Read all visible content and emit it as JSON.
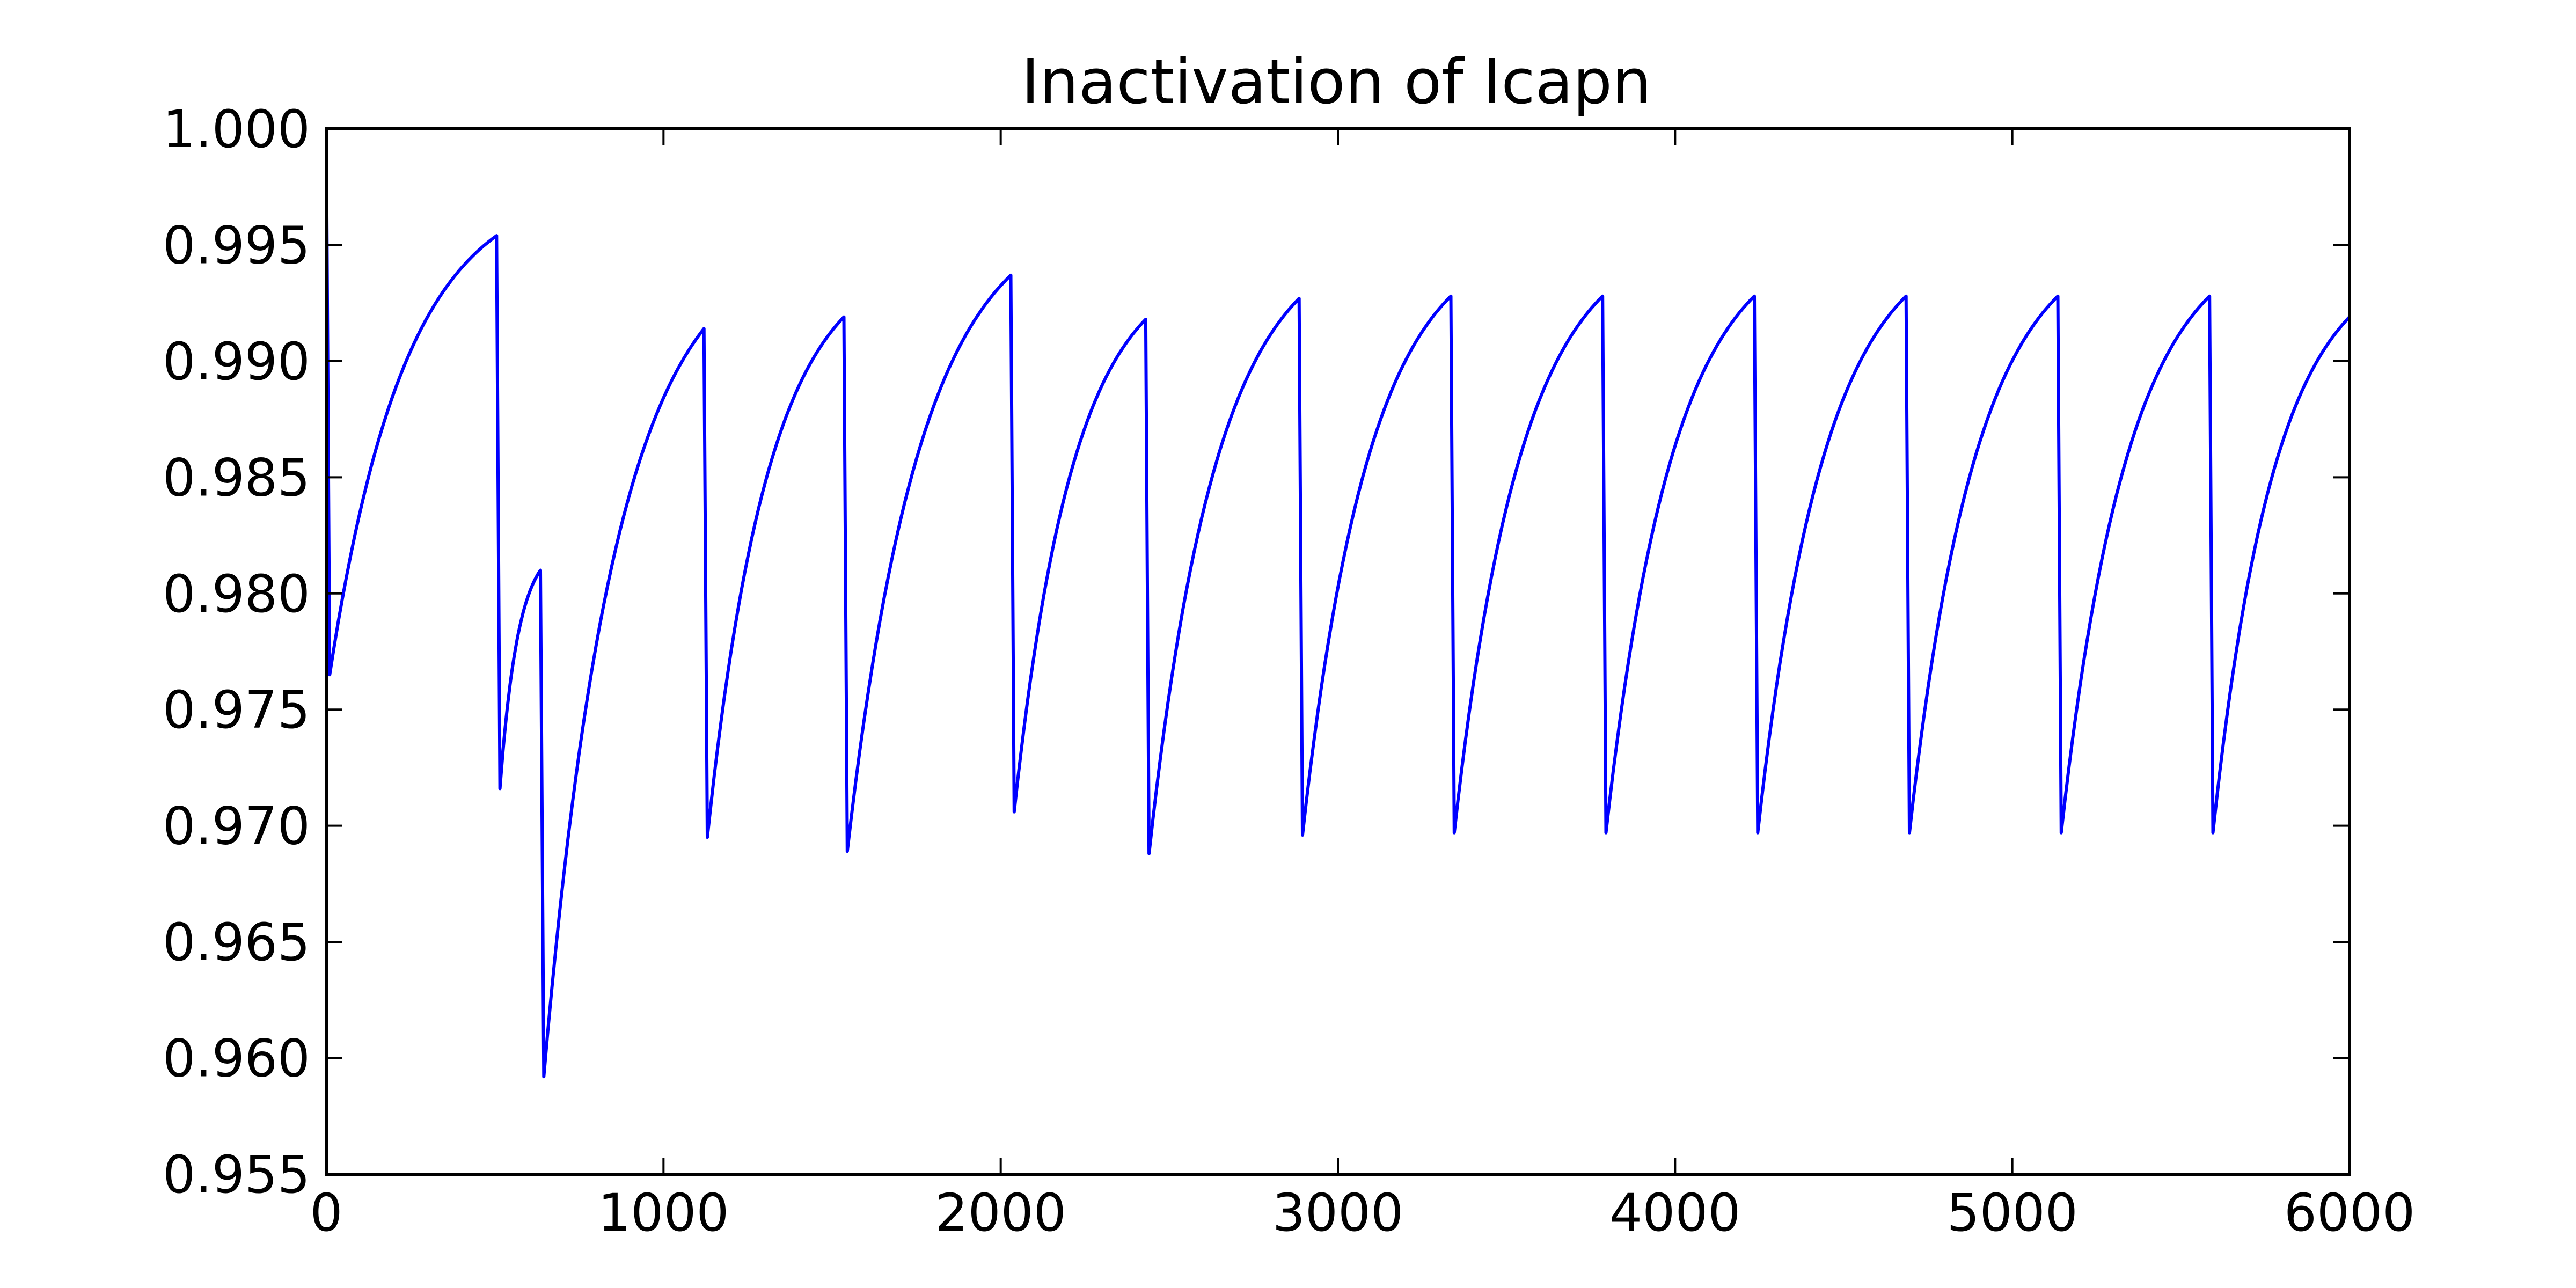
{
  "chart_data": {
    "type": "line",
    "title": "Inactivation of Icapn",
    "xlabel": "",
    "ylabel": "",
    "xlim": [
      0,
      6000
    ],
    "ylim": [
      0.955,
      1.0
    ],
    "x_ticks": [
      0,
      1000,
      2000,
      3000,
      4000,
      5000,
      6000
    ],
    "x_tick_labels": [
      "0",
      "1000",
      "2000",
      "3000",
      "4000",
      "5000",
      "6000"
    ],
    "y_ticks": [
      0.955,
      0.96,
      0.965,
      0.97,
      0.975,
      0.98,
      0.985,
      0.99,
      0.995,
      1.0
    ],
    "y_tick_labels": [
      "0.955",
      "0.960",
      "0.965",
      "0.970",
      "0.975",
      "0.980",
      "0.985",
      "0.990",
      "0.995",
      "1.000"
    ],
    "grid": false,
    "series": [
      {
        "color": "#0000ff",
        "segments": [
          {
            "start": [
              0,
              1.0
            ],
            "end": [
              10,
              0.9765
            ],
            "curve": "drop"
          },
          {
            "start": [
              10,
              0.9765
            ],
            "end": [
              505,
              0.9954
            ],
            "curve": "recovery"
          },
          {
            "start": [
              505,
              0.9954
            ],
            "end": [
              515,
              0.9716
            ],
            "curve": "drop"
          },
          {
            "start": [
              515,
              0.9716
            ],
            "end": [
              635,
              0.981
            ],
            "curve": "recovery"
          },
          {
            "start": [
              635,
              0.981
            ],
            "end": [
              645,
              0.9592
            ],
            "curve": "drop"
          },
          {
            "start": [
              645,
              0.9592
            ],
            "end": [
              1120,
              0.9914
            ],
            "curve": "recovery"
          },
          {
            "start": [
              1120,
              0.9914
            ],
            "end": [
              1130,
              0.9695
            ],
            "curve": "drop"
          },
          {
            "start": [
              1130,
              0.9695
            ],
            "end": [
              1535,
              0.9919
            ],
            "curve": "recovery"
          },
          {
            "start": [
              1535,
              0.9919
            ],
            "end": [
              1545,
              0.9689
            ],
            "curve": "drop"
          },
          {
            "start": [
              1545,
              0.9689
            ],
            "end": [
              2030,
              0.9937
            ],
            "curve": "recovery"
          },
          {
            "start": [
              2030,
              0.9937
            ],
            "end": [
              2040,
              0.9706
            ],
            "curve": "drop"
          },
          {
            "start": [
              2040,
              0.9706
            ],
            "end": [
              2430,
              0.9918
            ],
            "curve": "recovery"
          },
          {
            "start": [
              2430,
              0.9918
            ],
            "end": [
              2440,
              0.9688
            ],
            "curve": "drop"
          },
          {
            "start": [
              2440,
              0.9688
            ],
            "end": [
              2885,
              0.9927
            ],
            "curve": "recovery"
          },
          {
            "start": [
              2885,
              0.9927
            ],
            "end": [
              2895,
              0.9696
            ],
            "curve": "drop"
          },
          {
            "start": [
              2895,
              0.9696
            ],
            "end": [
              3335,
              0.9928
            ],
            "curve": "recovery"
          },
          {
            "start": [
              3335,
              0.9928
            ],
            "end": [
              3345,
              0.9697
            ],
            "curve": "drop"
          },
          {
            "start": [
              3345,
              0.9697
            ],
            "end": [
              3785,
              0.9928
            ],
            "curve": "recovery"
          },
          {
            "start": [
              3785,
              0.9928
            ],
            "end": [
              3795,
              0.9697
            ],
            "curve": "drop"
          },
          {
            "start": [
              3795,
              0.9697
            ],
            "end": [
              4235,
              0.9928
            ],
            "curve": "recovery"
          },
          {
            "start": [
              4235,
              0.9928
            ],
            "end": [
              4245,
              0.9697
            ],
            "curve": "drop"
          },
          {
            "start": [
              4245,
              0.9697
            ],
            "end": [
              4685,
              0.9928
            ],
            "curve": "recovery"
          },
          {
            "start": [
              4685,
              0.9928
            ],
            "end": [
              4695,
              0.9697
            ],
            "curve": "drop"
          },
          {
            "start": [
              4695,
              0.9697
            ],
            "end": [
              5135,
              0.9928
            ],
            "curve": "recovery"
          },
          {
            "start": [
              5135,
              0.9928
            ],
            "end": [
              5145,
              0.9697
            ],
            "curve": "drop"
          },
          {
            "start": [
              5145,
              0.9697
            ],
            "end": [
              5585,
              0.9928
            ],
            "curve": "recovery"
          },
          {
            "start": [
              5585,
              0.9928
            ],
            "end": [
              5595,
              0.9697
            ],
            "curve": "drop"
          },
          {
            "start": [
              5595,
              0.9697
            ],
            "end": [
              6000,
              0.9919
            ],
            "curve": "recovery"
          }
        ]
      }
    ]
  }
}
